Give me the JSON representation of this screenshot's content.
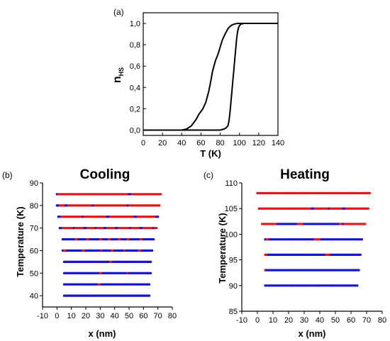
{
  "chart_data": [
    {
      "panel_label": "(a)",
      "type": "line",
      "title": "",
      "xlabel": "T (K)",
      "ylabel_main": "n",
      "ylabel_sub": "HS",
      "xlim": [
        0,
        140
      ],
      "ylim": [
        -0.05,
        1.1
      ],
      "x_ticks": [
        0,
        20,
        40,
        60,
        80,
        100,
        120,
        140
      ],
      "x_tick_labels": [
        "0",
        "20",
        "40",
        "60",
        "80",
        "100",
        "120",
        "140"
      ],
      "y_ticks": [
        0.0,
        0.2,
        0.4,
        0.6,
        0.8,
        1.0
      ],
      "y_tick_labels": [
        "0,0",
        "0,2",
        "0,4",
        "0,6",
        "0,8",
        "1,0"
      ],
      "grid": false,
      "line_color": "#000000",
      "series": [
        {
          "x": [
            0,
            40,
            45,
            50,
            55,
            58,
            62,
            65,
            68,
            70,
            72,
            75,
            78,
            80,
            82,
            85,
            88,
            90,
            92,
            95,
            98,
            100,
            105,
            110,
            140
          ],
          "y": [
            0.0,
            0.0,
            0.01,
            0.04,
            0.1,
            0.15,
            0.2,
            0.26,
            0.36,
            0.45,
            0.55,
            0.65,
            0.72,
            0.78,
            0.84,
            0.9,
            0.95,
            0.97,
            0.985,
            0.995,
            1.0,
            1.0,
            1.0,
            1.0,
            1.0
          ]
        },
        {
          "x": [
            0,
            80,
            84,
            86,
            88,
            89,
            90,
            91,
            92,
            93,
            94,
            95,
            96,
            97,
            98,
            99,
            100,
            102,
            105,
            110,
            140
          ],
          "y": [
            0.0,
            0.0,
            0.01,
            0.02,
            0.04,
            0.08,
            0.15,
            0.25,
            0.35,
            0.45,
            0.55,
            0.65,
            0.75,
            0.85,
            0.92,
            0.96,
            0.98,
            0.995,
            1.0,
            1.0,
            1.0
          ]
        }
      ]
    },
    {
      "panel_label": "(b)",
      "type": "scatter",
      "title": "Cooling",
      "xlabel": "x (nm)",
      "ylabel": "Temperature (K)",
      "xlim": [
        -10,
        80
      ],
      "ylim": [
        35,
        90
      ],
      "x_ticks": [
        -10,
        0,
        10,
        20,
        30,
        40,
        50,
        60,
        70,
        80
      ],
      "x_tick_labels": [
        "-10",
        "0",
        "10",
        "20",
        "30",
        "40",
        "50",
        "60",
        "70",
        "80"
      ],
      "y_ticks": [
        40,
        50,
        60,
        70,
        80,
        90
      ],
      "y_tick_labels": [
        "40",
        "50",
        "60",
        "70",
        "80",
        "90"
      ],
      "grid": false,
      "colors": {
        "LS": "#1414d2",
        "HS": "#e01818"
      },
      "rows": [
        {
          "T": 85,
          "x_start": 0,
          "x_end": 72,
          "base": "HS",
          "minority_x": [
            0,
            50,
            51
          ]
        },
        {
          "T": 80,
          "x_start": 0,
          "x_end": 71,
          "base": "HS",
          "minority_x": [
            0,
            1,
            6,
            7,
            25,
            49
          ]
        },
        {
          "T": 75,
          "x_start": 1,
          "x_end": 70,
          "base": "HS",
          "minority_x": [
            1,
            2,
            18,
            35,
            36,
            54,
            55,
            69,
            70
          ]
        },
        {
          "T": 70,
          "x_start": 2,
          "x_end": 69,
          "base": "HS",
          "minority_x": [
            2,
            3,
            12,
            19,
            20,
            27,
            33,
            34,
            41,
            42,
            51,
            58,
            59,
            67
          ]
        },
        {
          "T": 65,
          "x_start": 4,
          "x_end": 67,
          "base": "LS",
          "minority_x": [
            13,
            14,
            21,
            22,
            30,
            31,
            36,
            37,
            43,
            44,
            49,
            50,
            58,
            59
          ]
        },
        {
          "T": 60,
          "x_start": 4,
          "x_end": 66,
          "base": "LS",
          "minority_x": [
            5,
            6,
            18,
            19,
            31,
            38,
            39,
            47,
            57,
            58
          ]
        },
        {
          "T": 55,
          "x_start": 5,
          "x_end": 65,
          "base": "LS",
          "minority_x": [
            37,
            38
          ]
        },
        {
          "T": 50,
          "x_start": 5,
          "x_end": 65,
          "base": "LS",
          "minority_x": [
            30,
            31,
            49
          ]
        },
        {
          "T": 45,
          "x_start": 5,
          "x_end": 64,
          "base": "LS",
          "minority_x": [
            29,
            30
          ]
        },
        {
          "T": 40,
          "x_start": 5,
          "x_end": 64,
          "base": "LS",
          "minority_x": []
        }
      ]
    },
    {
      "panel_label": "(c)",
      "type": "scatter",
      "title": "Heating",
      "xlabel": "x (nm)",
      "ylabel": "Temperature (K)",
      "xlim": [
        -10,
        80
      ],
      "ylim": [
        85,
        110
      ],
      "x_ticks": [
        -10,
        0,
        10,
        20,
        30,
        40,
        50,
        60,
        70,
        80
      ],
      "x_tick_labels": [
        "-10",
        "0",
        "10",
        "20",
        "30",
        "40",
        "50",
        "60",
        "70",
        "80"
      ],
      "y_ticks": [
        85,
        90,
        95,
        100,
        105,
        110
      ],
      "y_tick_labels": [
        "85",
        "90",
        "95",
        "100",
        "105",
        "110"
      ],
      "grid": false,
      "colors": {
        "LS": "#1414d2",
        "HS": "#e01818"
      },
      "rows": [
        {
          "T": 108,
          "x_start": 0,
          "x_end": 72,
          "base": "HS",
          "minority_x": []
        },
        {
          "T": 105,
          "x_start": 1,
          "x_end": 71,
          "base": "HS",
          "minority_x": [
            35,
            36,
            46,
            55,
            56
          ]
        },
        {
          "T": 102,
          "x_start": 3,
          "x_end": 69,
          "base": "HS",
          "minority_x": [
            13,
            14,
            15,
            16,
            17,
            18,
            19,
            20,
            21,
            22,
            23,
            24,
            25,
            30,
            31,
            32,
            33,
            34,
            35,
            36,
            37,
            38,
            39,
            40,
            41,
            42,
            43,
            44,
            45,
            46,
            47,
            48,
            49,
            50,
            51,
            52,
            55
          ]
        },
        {
          "T": 99,
          "x_start": 5,
          "x_end": 67,
          "base": "LS",
          "minority_x": [
            6,
            7,
            37,
            38,
            39,
            40
          ]
        },
        {
          "T": 96,
          "x_start": 5,
          "x_end": 66,
          "base": "LS",
          "minority_x": [
            5,
            6,
            44,
            45,
            46
          ]
        },
        {
          "T": 93,
          "x_start": 5,
          "x_end": 65,
          "base": "LS",
          "minority_x": [
            5
          ]
        },
        {
          "T": 90,
          "x_start": 5,
          "x_end": 64,
          "base": "LS",
          "minority_x": []
        }
      ]
    }
  ]
}
